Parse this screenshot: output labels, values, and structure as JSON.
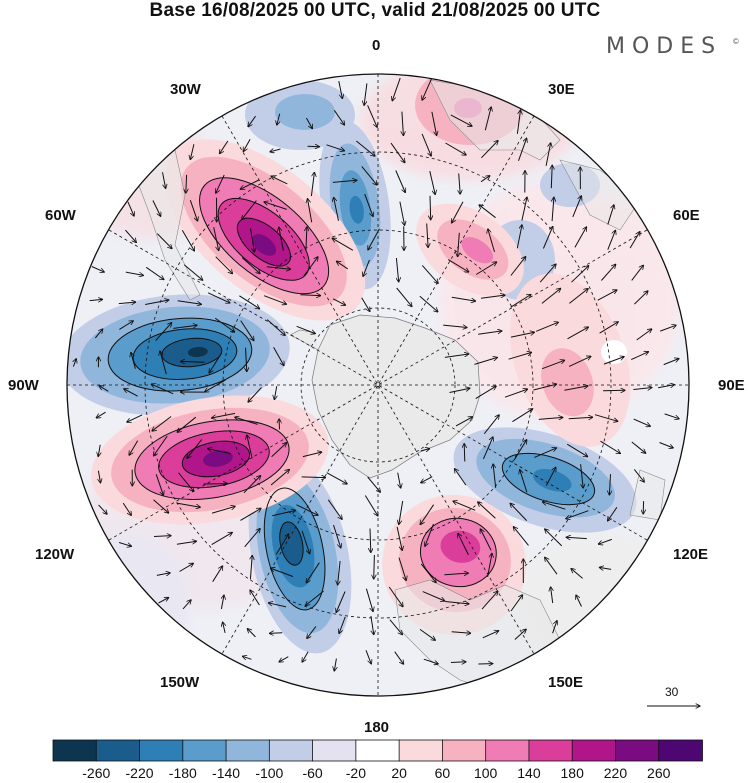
{
  "title": "Base 16/08/2025 00 UTC, valid 21/08/2025 00 UTC",
  "brand": "MODES",
  "brand_mark": "©",
  "longitude_labels": {
    "lon_0": "0",
    "lon_30e": "30E",
    "lon_60e": "60E",
    "lon_90e": "90E",
    "lon_120e": "120E",
    "lon_150e": "150E",
    "lon_180": "180",
    "lon_150w": "150W",
    "lon_120w": "120W",
    "lon_90w": "90W",
    "lon_60w": "60W",
    "lon_30w": "30W"
  },
  "reference_vector": {
    "label": "30"
  },
  "colorbar": {
    "tick_labels": [
      "-260",
      "-220",
      "-180",
      "-140",
      "-100",
      "-60",
      "-20",
      "20",
      "60",
      "100",
      "140",
      "180",
      "220",
      "260"
    ],
    "colors": [
      "#0d3550",
      "#1a5d8c",
      "#2e7fb6",
      "#5a9ccc",
      "#91b6dc",
      "#c2cde8",
      "#e4e2f0",
      "#ffffff",
      "#fbdadd",
      "#f7b2c2",
      "#ef7cb4",
      "#db3e9a",
      "#b1158a",
      "#7a0b80",
      "#4e0672"
    ]
  },
  "colors": {
    "ocean_land_gray": "#e6e6e6",
    "antarctica": "#eaeaea",
    "outline": "#000000"
  }
}
